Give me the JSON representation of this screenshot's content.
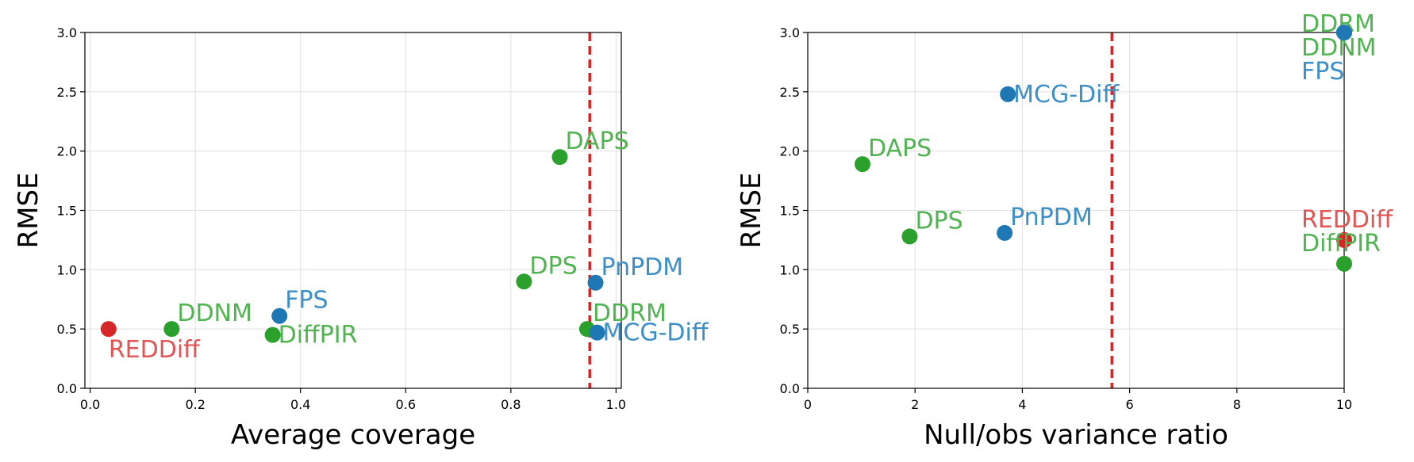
{
  "colors": {
    "blue": "#1f77b4",
    "green": "#2ca02c",
    "red": "#d62728",
    "label_blue": "#3d8fc6",
    "label_green": "#52b352",
    "label_red": "#e05555",
    "threshold": "#d62728",
    "grid": "#e0e0e0"
  },
  "chart_data": [
    {
      "type": "scatter",
      "title": "",
      "xlabel": "Average coverage",
      "ylabel": "RMSE",
      "xlim": [
        -0.01,
        1.01
      ],
      "ylim": [
        0.0,
        3.0
      ],
      "grid": true,
      "xticks": [
        0.0,
        0.2,
        0.4,
        0.6,
        0.8,
        1.0
      ],
      "xtick_labels": [
        "0.0",
        "0.2",
        "0.4",
        "0.6",
        "0.8",
        "1.0"
      ],
      "yticks": [
        0.0,
        0.5,
        1.0,
        1.5,
        2.0,
        2.5,
        3.0
      ],
      "ytick_labels": [
        "0.0",
        "0.5",
        "1.0",
        "1.5",
        "2.0",
        "2.5",
        "3.0"
      ],
      "threshold_x": 0.95,
      "points": [
        {
          "name": "REDDiff",
          "x": 0.035,
          "y": 0.5,
          "color": "red",
          "label_pos": "below-right"
        },
        {
          "name": "DDNM",
          "x": 0.155,
          "y": 0.5,
          "color": "green",
          "label_pos": "above-right"
        },
        {
          "name": "DiffPIR",
          "x": 0.347,
          "y": 0.45,
          "color": "green",
          "label_pos": "right"
        },
        {
          "name": "FPS",
          "x": 0.36,
          "y": 0.61,
          "color": "blue",
          "label_pos": "above-right"
        },
        {
          "name": "DPS",
          "x": 0.825,
          "y": 0.9,
          "color": "green",
          "label_pos": "above-right"
        },
        {
          "name": "DAPS",
          "x": 0.893,
          "y": 1.95,
          "color": "green",
          "label_pos": "above-right"
        },
        {
          "name": "DDRM",
          "x": 0.945,
          "y": 0.5,
          "color": "green",
          "label_pos": "above-right"
        },
        {
          "name": "PnPDM",
          "x": 0.961,
          "y": 0.89,
          "color": "blue",
          "label_pos": "above-right"
        },
        {
          "name": "MCG-Diff",
          "x": 0.964,
          "y": 0.47,
          "color": "blue",
          "label_pos": "right"
        }
      ]
    },
    {
      "type": "scatter",
      "title": "",
      "xlabel": "Null/obs variance ratio",
      "ylabel": "RMSE",
      "xlim": [
        0,
        10
      ],
      "ylim": [
        0.0,
        3.0
      ],
      "grid": true,
      "xticks": [
        0,
        2,
        4,
        6,
        8,
        10
      ],
      "xtick_labels": [
        "0",
        "2",
        "4",
        "6",
        "8",
        "10"
      ],
      "yticks": [
        0.0,
        0.5,
        1.0,
        1.5,
        2.0,
        2.5,
        3.0
      ],
      "ytick_labels": [
        "0.0",
        "0.5",
        "1.0",
        "1.5",
        "2.0",
        "2.5",
        "3.0"
      ],
      "threshold_x": 5.67,
      "points": [
        {
          "name": "DAPS",
          "x": 1.02,
          "y": 1.89,
          "color": "green",
          "label_pos": "above-right"
        },
        {
          "name": "DPS",
          "x": 1.9,
          "y": 1.28,
          "color": "green",
          "label_pos": "above-right"
        },
        {
          "name": "PnPDM",
          "x": 3.67,
          "y": 1.31,
          "color": "blue",
          "label_pos": "above-right"
        },
        {
          "name": "MCG-Diff",
          "x": 3.73,
          "y": 2.48,
          "color": "blue",
          "label_pos": "right"
        },
        {
          "name": "REDDiff",
          "x": 10.0,
          "y": 1.25,
          "color": "red",
          "label_pos": "above-left"
        },
        {
          "name": "DiffPIR",
          "x": 10.0,
          "y": 1.05,
          "color": "green",
          "label_pos": "above-left"
        },
        {
          "name": "DDRM",
          "x": 10.0,
          "y": 3.0,
          "color": "green",
          "label_pos": "stack-left-1"
        },
        {
          "name": "DDNM",
          "x": 10.0,
          "y": 3.0,
          "color": "green",
          "label_pos": "stack-left-2"
        },
        {
          "name": "FPS",
          "x": 10.0,
          "y": 3.0,
          "color": "blue",
          "label_pos": "stack-left-3"
        }
      ]
    }
  ]
}
